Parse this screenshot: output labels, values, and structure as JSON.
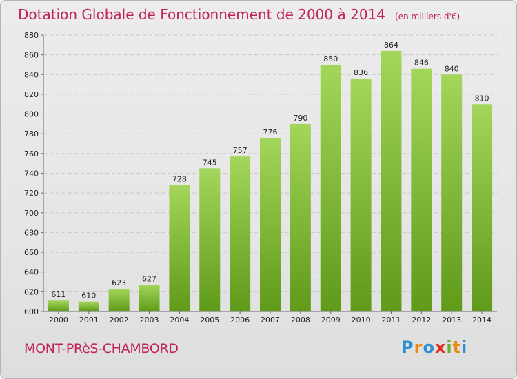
{
  "header": {
    "title": "Dotation Globale de Fonctionnement de 2000 à 2014",
    "subtitle": "(en milliers d'€)"
  },
  "footer": {
    "city": "MONT-PRèS-CHAMBORD",
    "logo": "Proxiti"
  },
  "colors": {
    "title": "#c0225c",
    "bar_top": "#a3d65a",
    "bar_bottom": "#5f9a19"
  },
  "chart_data": {
    "type": "bar",
    "title": "Dotation Globale de Fonctionnement de 2000 à 2014",
    "subtitle": "(en milliers d'€)",
    "categories": [
      "2000",
      "2001",
      "2002",
      "2003",
      "2004",
      "2005",
      "2006",
      "2007",
      "2008",
      "2009",
      "2010",
      "2011",
      "2012",
      "2013",
      "2014"
    ],
    "values": [
      611,
      610,
      623,
      627,
      728,
      745,
      757,
      776,
      790,
      850,
      836,
      864,
      846,
      840,
      810
    ],
    "ylim": [
      600,
      880
    ],
    "yticks": [
      600,
      620,
      640,
      660,
      680,
      700,
      720,
      740,
      760,
      780,
      800,
      820,
      840,
      860,
      880
    ],
    "grid": true,
    "xlabel": "",
    "ylabel": ""
  }
}
